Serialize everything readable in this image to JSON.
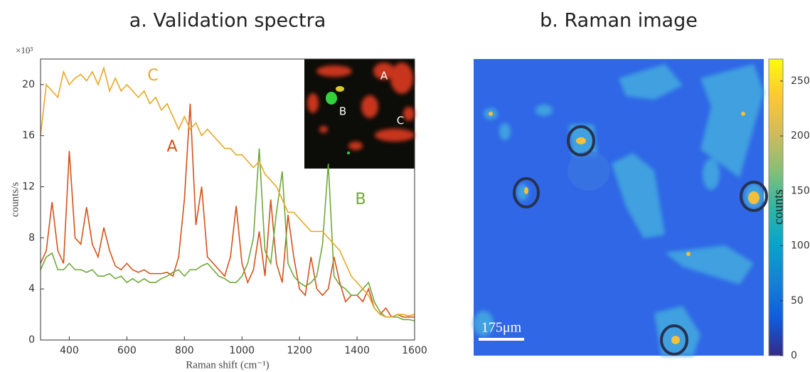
{
  "chart_data": [
    {
      "type": "line",
      "title": "a. Validation spectra",
      "x_label": "Raman shift (cm⁻¹)",
      "y_label": "counts/s",
      "y_multiplier": "×10³",
      "x": [
        300,
        320,
        340,
        360,
        380,
        400,
        420,
        440,
        460,
        480,
        500,
        520,
        540,
        560,
        580,
        600,
        620,
        640,
        660,
        680,
        700,
        720,
        740,
        760,
        780,
        800,
        820,
        840,
        860,
        880,
        900,
        920,
        940,
        960,
        980,
        1000,
        1020,
        1040,
        1060,
        1080,
        1100,
        1120,
        1140,
        1160,
        1180,
        1200,
        1220,
        1240,
        1260,
        1280,
        1300,
        1320,
        1340,
        1360,
        1380,
        1400,
        1420,
        1440,
        1460,
        1480,
        1500,
        1520,
        1540,
        1560,
        1580,
        1600
      ],
      "series": [
        {
          "name": "A",
          "color": "#d4521a",
          "values": [
            6,
            7,
            10.8,
            7,
            6,
            14.8,
            8,
            7.5,
            10.4,
            7.5,
            6.5,
            8.8,
            7,
            5.8,
            5.5,
            6,
            5.5,
            5.3,
            5.5,
            5.2,
            5.2,
            5.2,
            5.3,
            5,
            6.5,
            11,
            18.5,
            9,
            12,
            6.5,
            6,
            5.5,
            5,
            6.5,
            10.5,
            6,
            4.5,
            5.5,
            8.5,
            5,
            11,
            6,
            4.5,
            9.8,
            6.5,
            4,
            3.5,
            6.5,
            4,
            3.5,
            4,
            6.5,
            4.5,
            3,
            3.5,
            3.5,
            3,
            4,
            2.5,
            2,
            2.5,
            1.8,
            2,
            1.8,
            1.8,
            1.8
          ]
        },
        {
          "name": "B",
          "color": "#6fa83a",
          "values": [
            5.5,
            6.5,
            6.8,
            5.5,
            5.5,
            6,
            5.5,
            5.5,
            5.3,
            5.5,
            5,
            5,
            5.2,
            4.8,
            5,
            4.5,
            4.8,
            4.5,
            4.8,
            4.5,
            4.5,
            4.8,
            5,
            5.3,
            5.5,
            5,
            5.5,
            5.5,
            5.8,
            6,
            5.5,
            5,
            4.8,
            4.5,
            4.5,
            5,
            6,
            8,
            15,
            7,
            6,
            10,
            13.2,
            6,
            5,
            4.5,
            4.2,
            4.5,
            5,
            7.5,
            13.8,
            5,
            4.3,
            4,
            3.5,
            3.5,
            4,
            4.5,
            3,
            2.2,
            1.8,
            1.8,
            1.8,
            1.6,
            1.6,
            1.5
          ]
        },
        {
          "name": "C",
          "color": "#e6a828",
          "values": [
            16,
            20,
            19.5,
            19,
            21,
            20,
            20.5,
            20.8,
            20.3,
            21,
            20,
            21.3,
            19.5,
            20.5,
            19.5,
            20,
            19.5,
            19,
            19.5,
            18.5,
            19,
            18,
            18.5,
            17.5,
            16.5,
            17.5,
            16.5,
            17,
            16,
            16.5,
            16,
            15.5,
            15,
            15,
            14.5,
            14.5,
            14,
            13.5,
            14,
            13,
            12.5,
            12,
            11,
            10,
            10,
            9.5,
            9,
            8.5,
            8.5,
            8.5,
            8,
            7.5,
            7,
            6,
            5,
            4.5,
            4,
            3.5,
            2.5,
            2,
            1.8,
            1.8,
            2,
            2,
            1.9,
            2
          ]
        }
      ],
      "inset_labels": [
        "A",
        "B",
        "C"
      ],
      "xlim": [
        300,
        1600
      ],
      "xticks": [
        400,
        600,
        800,
        1000,
        1200,
        1400,
        1600
      ],
      "ylim": [
        0,
        22
      ],
      "yticks": [
        0,
        4,
        8,
        12,
        16,
        20
      ]
    },
    {
      "type": "image",
      "title": "b. Raman image",
      "colorbar_label": "counts",
      "scale_bar": "175μm",
      "clim": [
        0,
        270
      ],
      "cticks": [
        0,
        50,
        100,
        150,
        200,
        250
      ],
      "colormap": [
        "#352a87",
        "#0f5cdd",
        "#1481d6",
        "#06a4ca",
        "#2eb7a4",
        "#87bf77",
        "#d1bb59",
        "#fec832",
        "#f9fb0e"
      ]
    }
  ]
}
